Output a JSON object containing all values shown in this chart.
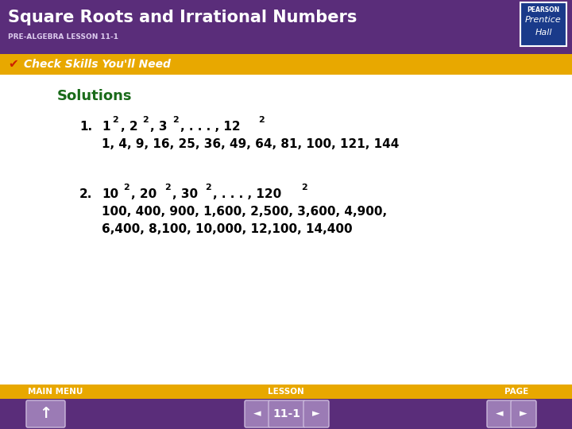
{
  "title": "Square Roots and Irrational Numbers",
  "subtitle": "PRE-ALGEBRA LESSON 11-1",
  "banner_text": "Check Skills You'll Need",
  "solutions_label": "Solutions",
  "item1_line1_parts": [
    {
      "text": "1",
      "super": false
    },
    {
      "text": "2",
      "super": true
    },
    {
      "text": ", 2",
      "super": false
    },
    {
      "text": "2",
      "super": true
    },
    {
      "text": ", 3",
      "super": false
    },
    {
      "text": "2",
      "super": true
    },
    {
      "text": ", . . . , 12",
      "super": false
    },
    {
      "text": "2",
      "super": true
    }
  ],
  "item1_line2": "1, 4, 9, 16, 25, 36, 49, 64, 81, 100, 121, 144",
  "item2_line1_parts": [
    {
      "text": "10",
      "super": false
    },
    {
      "text": "2",
      "super": true
    },
    {
      "text": ", 20",
      "super": false
    },
    {
      "text": "2",
      "super": true
    },
    {
      "text": ", 30",
      "super": false
    },
    {
      "text": "2",
      "super": true
    },
    {
      "text": ", . . . , 120",
      "super": false
    },
    {
      "text": "2",
      "super": true
    }
  ],
  "item2_line2": "100, 400, 900, 1,600, 2,500, 3,600, 4,900,",
  "item2_line3": "6,400, 8,100, 10,000, 12,100, 14,400",
  "header_bg": "#5a2d7a",
  "banner_bg": "#e8a800",
  "footer_top_bg": "#e8a800",
  "footer_bottom_bg": "#5a2d7a",
  "content_bg": "#ffffff",
  "title_color": "#ffffff",
  "subtitle_color": "#ddccee",
  "banner_text_color": "#ffffff",
  "solutions_color": "#1a6b1a",
  "body_color": "#000000",
  "number_color": "#000000",
  "footer_btn_bg": "#9b7bb5",
  "footer_text_color": "#f0c000",
  "footer_label_left": "MAIN MENU",
  "footer_label_center": "LESSON",
  "footer_label_right": "PAGE",
  "footer_center_text": "11-1",
  "logo_bg": "#1a3a8a",
  "checkmark_color": "#cc2200"
}
